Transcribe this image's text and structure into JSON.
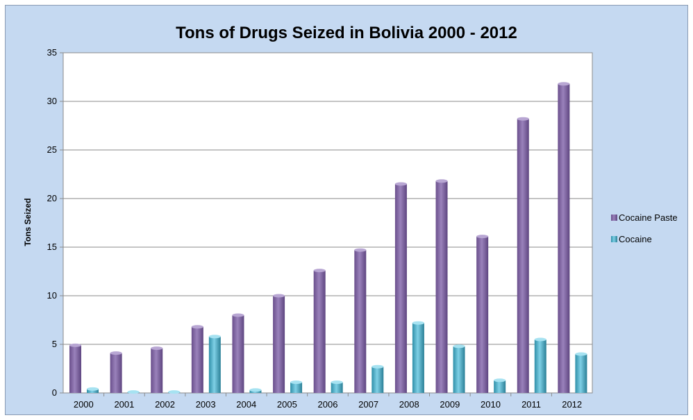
{
  "chart_data": {
    "type": "bar",
    "title": "Tons of Drugs Seized in Bolivia 2000 - 2012",
    "xlabel": "",
    "ylabel": "Tons Seized",
    "categories": [
      "2000",
      "2001",
      "2002",
      "2003",
      "2004",
      "2005",
      "2006",
      "2007",
      "2008",
      "2009",
      "2010",
      "2011",
      "2012"
    ],
    "series": [
      {
        "name": "Cocaine Paste",
        "color": "#8064a2",
        "values": [
          4.9,
          4.1,
          4.6,
          6.8,
          8.0,
          10.0,
          12.6,
          14.7,
          21.5,
          21.8,
          16.1,
          28.2,
          31.8
        ]
      },
      {
        "name": "Cocaine",
        "color": "#4bacc6",
        "values": [
          0.4,
          0.1,
          0.1,
          5.8,
          0.3,
          1.1,
          1.1,
          2.7,
          7.2,
          4.8,
          1.3,
          5.5,
          4.0
        ]
      }
    ],
    "ylim": [
      0,
      35
    ],
    "yticks": [
      0,
      5,
      10,
      15,
      20,
      25,
      30,
      35
    ],
    "grid": true,
    "legend_position": "right"
  }
}
